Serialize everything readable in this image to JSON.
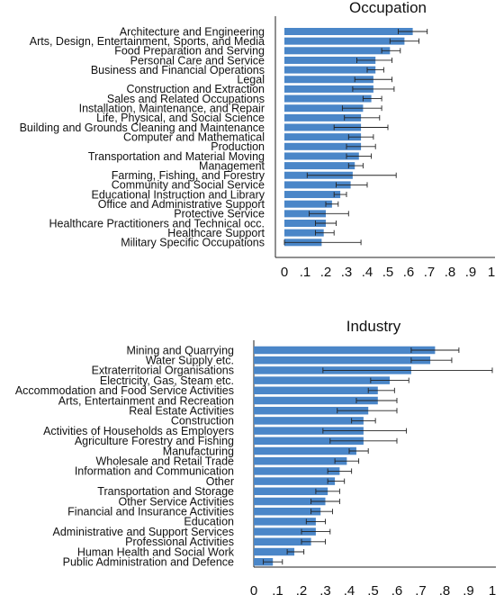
{
  "chart_data": [
    {
      "type": "bar",
      "orientation": "horizontal",
      "title": "Occupation",
      "xlim": [
        0,
        1
      ],
      "xticks": [
        "0",
        ".1",
        ".2",
        ".3",
        ".4",
        ".5",
        ".6",
        ".7",
        ".8",
        ".9",
        "1"
      ],
      "bar_color": "#4a86c8",
      "categories": [
        "Architecture and Engineering",
        "Arts, Design, Entertainment, Sports, and Media",
        "Food Preparation and Serving",
        "Personal Care and Service",
        "Business and Financial Operations",
        "Legal",
        "Construction and Extraction",
        "Sales and Related Occupations",
        "Installation, Maintenance, and Repair",
        "Life, Physical, and Social Science",
        "Building and Grounds Cleaning and Maintenance",
        "Computer and Mathematical",
        "Production",
        "Transportation and Material Moving",
        "Management",
        "Farming, Fishing, and Forestry",
        "Community and Social Service",
        "Educational Instruction and Library",
        "Office and Administrative Support",
        "Protective Service",
        "Healthcare Practitioners and Technical occ.",
        "Healthcare Support",
        "Military Specific Occupations"
      ],
      "values": [
        0.62,
        0.58,
        0.51,
        0.44,
        0.44,
        0.43,
        0.43,
        0.42,
        0.38,
        0.37,
        0.37,
        0.37,
        0.37,
        0.36,
        0.34,
        0.33,
        0.32,
        0.27,
        0.23,
        0.2,
        0.2,
        0.19,
        0.18
      ],
      "ci_low": [
        0.55,
        0.51,
        0.47,
        0.35,
        0.4,
        0.34,
        0.33,
        0.38,
        0.28,
        0.29,
        0.24,
        0.31,
        0.3,
        0.3,
        0.31,
        0.11,
        0.25,
        0.24,
        0.2,
        0.12,
        0.15,
        0.15,
        0.0
      ],
      "ci_high": [
        0.69,
        0.65,
        0.56,
        0.52,
        0.48,
        0.52,
        0.53,
        0.47,
        0.47,
        0.46,
        0.5,
        0.43,
        0.44,
        0.42,
        0.38,
        0.54,
        0.4,
        0.3,
        0.26,
        0.31,
        0.25,
        0.24,
        0.37
      ]
    },
    {
      "type": "bar",
      "orientation": "horizontal",
      "title": "Industry",
      "xlim": [
        0,
        1
      ],
      "xticks": [
        "0",
        ".1",
        ".2",
        ".3",
        ".4",
        ".5",
        ".6",
        ".7",
        ".8",
        ".9",
        "1"
      ],
      "bar_color": "#4a86c8",
      "categories": [
        "Mining and Quarrying",
        "Water Supply etc.",
        "Extraterritorial Organisations",
        "Electricity, Gas, Steam etc.",
        "Accommodation and Food Service Activities",
        "Arts, Entertainment and Recreation",
        "Real Estate Activities",
        "Construction",
        "Activities of Households as Employers",
        "Agriculture Forestry and Fishing",
        "Manufacturing",
        "Wholesale and Retail Trade",
        "Information and Communication",
        "Other",
        "Transportation and Storage",
        "Other Service Activities",
        "Financial and Insurance Activities",
        "Education",
        "Administrative and Support Services",
        "Professional Activities",
        "Human Health and Social Work",
        "Public Administration and Defence"
      ],
      "values": [
        0.76,
        0.74,
        0.66,
        0.57,
        0.52,
        0.52,
        0.48,
        0.46,
        0.46,
        0.46,
        0.43,
        0.39,
        0.36,
        0.34,
        0.31,
        0.3,
        0.28,
        0.26,
        0.26,
        0.24,
        0.17,
        0.08
      ],
      "ci_low": [
        0.66,
        0.66,
        0.29,
        0.49,
        0.48,
        0.43,
        0.35,
        0.41,
        0.29,
        0.32,
        0.4,
        0.34,
        0.31,
        0.31,
        0.26,
        0.24,
        0.24,
        0.22,
        0.2,
        0.2,
        0.14,
        0.04
      ],
      "ci_high": [
        0.86,
        0.83,
        1.0,
        0.65,
        0.59,
        0.6,
        0.6,
        0.51,
        0.64,
        0.6,
        0.48,
        0.44,
        0.41,
        0.38,
        0.36,
        0.36,
        0.33,
        0.3,
        0.32,
        0.3,
        0.21,
        0.12
      ]
    }
  ]
}
